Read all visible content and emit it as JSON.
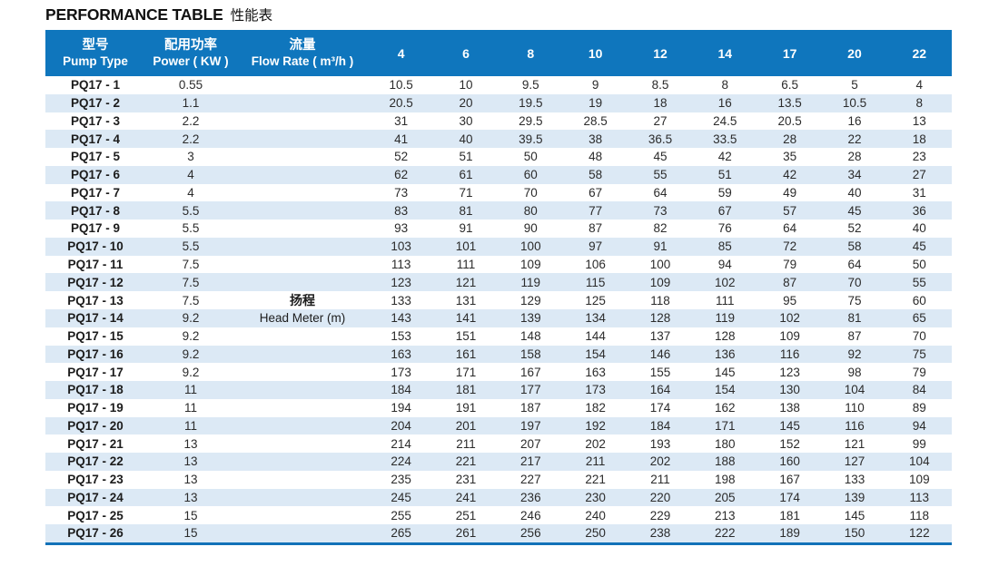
{
  "title": {
    "en": "PERFORMANCE TABLE",
    "zh": "性能表"
  },
  "colors": {
    "header_bg": "#0F76BD",
    "row_alt_bg": "#DCE9F5",
    "table_bottom_border": "#1272B8",
    "header_text": "#FFFFFF",
    "body_text": "#2B2B2B"
  },
  "table": {
    "headers": {
      "pump_type": {
        "zh": "型号",
        "en": "Pump Type"
      },
      "power": {
        "zh": "配用功率",
        "en": "Power ( KW )"
      },
      "flow_rate": {
        "zh": "流量",
        "en": "Flow Rate ( m³/h )"
      }
    },
    "flow_columns": [
      "4",
      "6",
      "8",
      "10",
      "12",
      "14",
      "17",
      "20",
      "22"
    ],
    "head_note": {
      "zh": "扬程",
      "en": "Head Meter (m)"
    },
    "rows": [
      {
        "model": "PQ17 - 1",
        "power": "0.55",
        "values": [
          "10.5",
          "10",
          "9.5",
          "9",
          "8.5",
          "8",
          "6.5",
          "5",
          "4"
        ]
      },
      {
        "model": "PQ17 - 2",
        "power": "1.1",
        "values": [
          "20.5",
          "20",
          "19.5",
          "19",
          "18",
          "16",
          "13.5",
          "10.5",
          "8"
        ]
      },
      {
        "model": "PQ17 - 3",
        "power": "2.2",
        "values": [
          "31",
          "30",
          "29.5",
          "28.5",
          "27",
          "24.5",
          "20.5",
          "16",
          "13"
        ]
      },
      {
        "model": "PQ17 - 4",
        "power": "2.2",
        "values": [
          "41",
          "40",
          "39.5",
          "38",
          "36.5",
          "33.5",
          "28",
          "22",
          "18"
        ]
      },
      {
        "model": "PQ17 - 5",
        "power": "3",
        "values": [
          "52",
          "51",
          "50",
          "48",
          "45",
          "42",
          "35",
          "28",
          "23"
        ]
      },
      {
        "model": "PQ17 - 6",
        "power": "4",
        "values": [
          "62",
          "61",
          "60",
          "58",
          "55",
          "51",
          "42",
          "34",
          "27"
        ]
      },
      {
        "model": "PQ17 - 7",
        "power": "4",
        "values": [
          "73",
          "71",
          "70",
          "67",
          "64",
          "59",
          "49",
          "40",
          "31"
        ]
      },
      {
        "model": "PQ17 - 8",
        "power": "5.5",
        "values": [
          "83",
          "81",
          "80",
          "77",
          "73",
          "67",
          "57",
          "45",
          "36"
        ]
      },
      {
        "model": "PQ17 - 9",
        "power": "5.5",
        "values": [
          "93",
          "91",
          "90",
          "87",
          "82",
          "76",
          "64",
          "52",
          "40"
        ]
      },
      {
        "model": "PQ17 - 10",
        "power": "5.5",
        "values": [
          "103",
          "101",
          "100",
          "97",
          "91",
          "85",
          "72",
          "58",
          "45"
        ]
      },
      {
        "model": "PQ17 - 11",
        "power": "7.5",
        "values": [
          "113",
          "111",
          "109",
          "106",
          "100",
          "94",
          "79",
          "64",
          "50"
        ]
      },
      {
        "model": "PQ17 - 12",
        "power": "7.5",
        "values": [
          "123",
          "121",
          "119",
          "115",
          "109",
          "102",
          "87",
          "70",
          "55"
        ]
      },
      {
        "model": "PQ17 - 13",
        "power": "7.5",
        "values": [
          "133",
          "131",
          "129",
          "125",
          "118",
          "111",
          "95",
          "75",
          "60"
        ]
      },
      {
        "model": "PQ17 - 14",
        "power": "9.2",
        "values": [
          "143",
          "141",
          "139",
          "134",
          "128",
          "119",
          "102",
          "81",
          "65"
        ]
      },
      {
        "model": "PQ17 - 15",
        "power": "9.2",
        "values": [
          "153",
          "151",
          "148",
          "144",
          "137",
          "128",
          "109",
          "87",
          "70"
        ]
      },
      {
        "model": "PQ17 - 16",
        "power": "9.2",
        "values": [
          "163",
          "161",
          "158",
          "154",
          "146",
          "136",
          "116",
          "92",
          "75"
        ]
      },
      {
        "model": "PQ17 - 17",
        "power": "9.2",
        "values": [
          "173",
          "171",
          "167",
          "163",
          "155",
          "145",
          "123",
          "98",
          "79"
        ]
      },
      {
        "model": "PQ17 - 18",
        "power": "11",
        "values": [
          "184",
          "181",
          "177",
          "173",
          "164",
          "154",
          "130",
          "104",
          "84"
        ]
      },
      {
        "model": "PQ17 - 19",
        "power": "11",
        "values": [
          "194",
          "191",
          "187",
          "182",
          "174",
          "162",
          "138",
          "110",
          "89"
        ]
      },
      {
        "model": "PQ17 - 20",
        "power": "11",
        "values": [
          "204",
          "201",
          "197",
          "192",
          "184",
          "171",
          "145",
          "116",
          "94"
        ]
      },
      {
        "model": "PQ17 - 21",
        "power": "13",
        "values": [
          "214",
          "211",
          "207",
          "202",
          "193",
          "180",
          "152",
          "121",
          "99"
        ]
      },
      {
        "model": "PQ17 - 22",
        "power": "13",
        "values": [
          "224",
          "221",
          "217",
          "211",
          "202",
          "188",
          "160",
          "127",
          "104"
        ]
      },
      {
        "model": "PQ17 - 23",
        "power": "13",
        "values": [
          "235",
          "231",
          "227",
          "221",
          "211",
          "198",
          "167",
          "133",
          "109"
        ]
      },
      {
        "model": "PQ17 - 24",
        "power": "13",
        "values": [
          "245",
          "241",
          "236",
          "230",
          "220",
          "205",
          "174",
          "139",
          "113"
        ]
      },
      {
        "model": "PQ17 - 25",
        "power": "15",
        "values": [
          "255",
          "251",
          "246",
          "240",
          "229",
          "213",
          "181",
          "145",
          "118"
        ]
      },
      {
        "model": "PQ17 - 26",
        "power": "15",
        "values": [
          "265",
          "261",
          "256",
          "250",
          "238",
          "222",
          "189",
          "150",
          "122"
        ]
      }
    ]
  }
}
